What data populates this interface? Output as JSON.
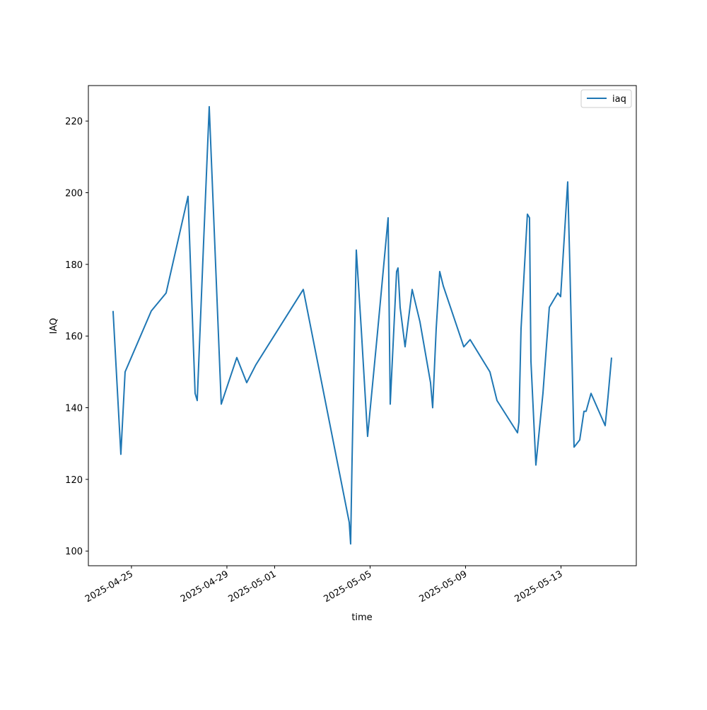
{
  "chart_data": {
    "type": "line",
    "xlabel": "time",
    "ylabel": "IAQ",
    "x": [
      "2025-04-24T05:30",
      "2025-04-24T13:20",
      "2025-04-24T17:36",
      "2025-04-25T19:55",
      "2025-04-26T10:50",
      "2025-04-27T08:53",
      "2025-04-27T16:00",
      "2025-04-27T18:08",
      "2025-04-28T00:32",
      "2025-04-28T06:13",
      "2025-04-28T18:19",
      "2025-04-29T09:57",
      "2025-04-29T19:55",
      "2025-04-30T05:10",
      "2025-05-02T04:48",
      "2025-05-04T03:02",
      "2025-05-04T04:26",
      "2025-05-04T05:51",
      "2025-05-04T10:08",
      "2025-05-04T15:07",
      "2025-05-04T21:30",
      "2025-05-05T07:28",
      "2025-05-05T18:08",
      "2025-05-05T20:16",
      "2025-05-06T02:40",
      "2025-05-06T04:05",
      "2025-05-06T06:13",
      "2025-05-06T11:12",
      "2025-05-06T18:19",
      "2025-05-07T02:08",
      "2025-05-07T12:48",
      "2025-05-07T14:56",
      "2025-05-07T18:29",
      "2025-05-07T22:02",
      "2025-05-08T01:36",
      "2025-05-08T22:14",
      "2025-05-09T04:37",
      "2025-05-10T00:32",
      "2025-05-10T07:39",
      "2025-05-11T04:16",
      "2025-05-11T05:41",
      "2025-05-11T07:49",
      "2025-05-11T14:13",
      "2025-05-11T16:21",
      "2025-05-11T17:47",
      "2025-05-11T22:45",
      "2025-05-12T05:51",
      "2025-05-12T12:15",
      "2025-05-12T20:48",
      "2025-05-12T23:38",
      "2025-05-13T06:45",
      "2025-05-13T08:53",
      "2025-05-13T13:09",
      "2025-05-13T18:50",
      "2025-05-13T23:07",
      "2025-05-14T01:15",
      "2025-05-14T06:13",
      "2025-05-14T20:27",
      "2025-05-14T23:17",
      "2025-05-15T02:51"
    ],
    "series": [
      {
        "name": "iaq",
        "color": "#1f77b4",
        "values": [
          167,
          127,
          150,
          167,
          172,
          199,
          144,
          142,
          186,
          224,
          141,
          154,
          147,
          152,
          173,
          108,
          102,
          125,
          184,
          162,
          132,
          161,
          193,
          141,
          178,
          179,
          168,
          157,
          173,
          164,
          147,
          140,
          162,
          178,
          174,
          157,
          159,
          150,
          142,
          133,
          136,
          162,
          194,
          193,
          153,
          124,
          144,
          168,
          172,
          171,
          203,
          180,
          129,
          131,
          139,
          139,
          144,
          135,
          143,
          154
        ]
      }
    ],
    "xlim": [
      "2025-04-23T04:40",
      "2025-05-16T03:45"
    ],
    "xticks": [
      "2025-04-25",
      "2025-04-29",
      "2025-05-01",
      "2025-05-05",
      "2025-05-09",
      "2025-05-13"
    ],
    "ylim": [
      95.9,
      229.9
    ],
    "yticks": [
      100,
      120,
      140,
      160,
      180,
      200,
      220
    ],
    "grid": false,
    "legend": "upper right"
  }
}
